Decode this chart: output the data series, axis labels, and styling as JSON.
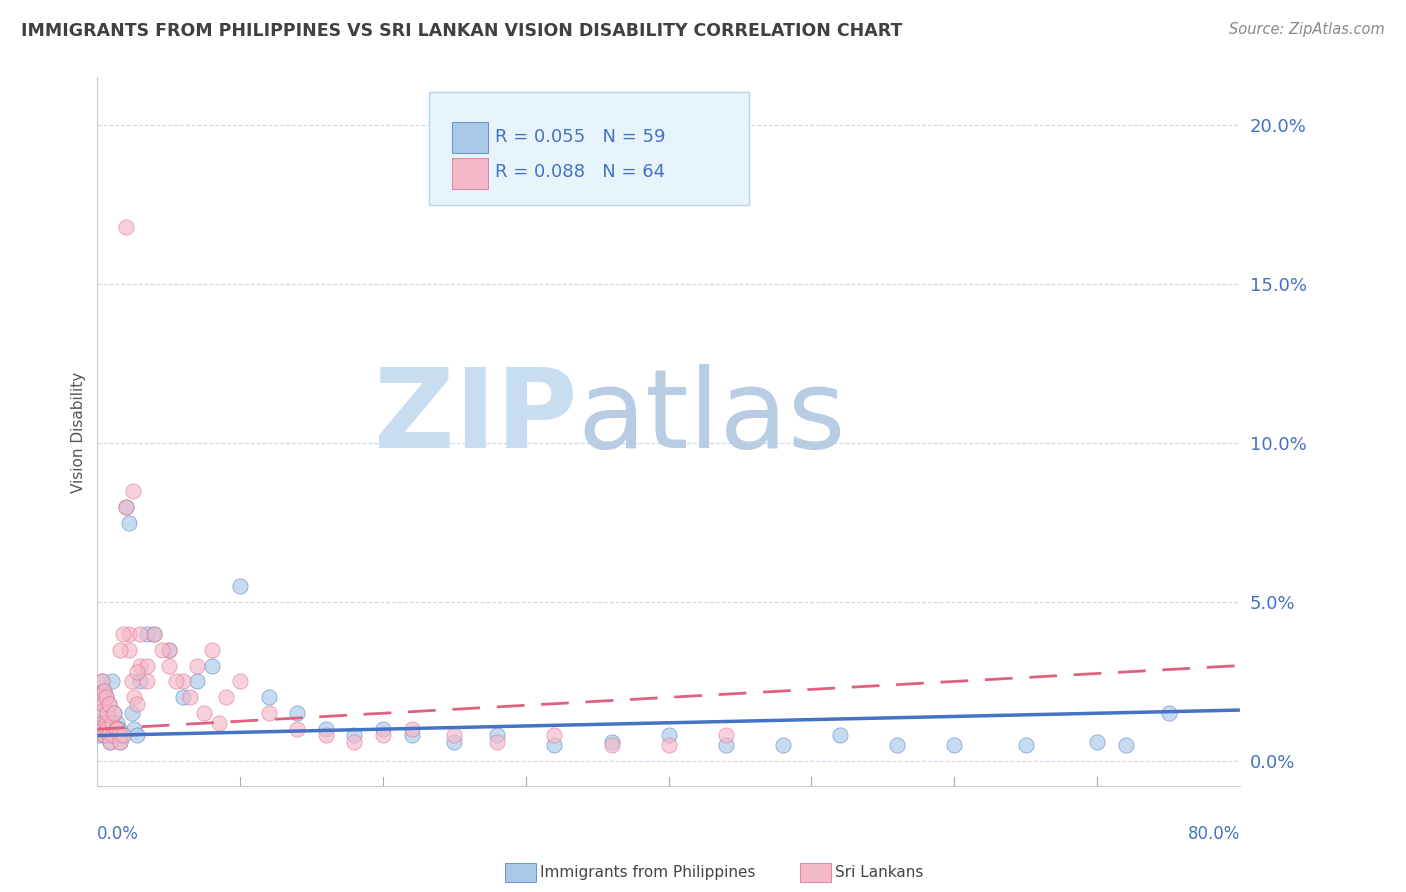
{
  "title": "IMMIGRANTS FROM PHILIPPINES VS SRI LANKAN VISION DISABILITY CORRELATION CHART",
  "source": "Source: ZipAtlas.com",
  "ylabel": "Vision Disability",
  "yticks": [
    0.0,
    0.05,
    0.1,
    0.15,
    0.2
  ],
  "ytick_labels": [
    "0.0%",
    "5.0%",
    "10.0%",
    "15.0%",
    "20.0%"
  ],
  "xlim": [
    0.0,
    0.8
  ],
  "ylim": [
    -0.008,
    0.215
  ],
  "philippines_R": 0.055,
  "philippines_N": 59,
  "srilanka_R": 0.088,
  "srilanka_N": 64,
  "color_blue": "#a8c8e8",
  "color_blue_line": "#4472c4",
  "color_pink": "#f4b8c8",
  "color_pink_line": "#e06080",
  "color_axis_label": "#4472c4",
  "color_title": "#404040",
  "watermark_zip": "#c8ddf0",
  "watermark_atlas": "#b8cce4",
  "legend_box_color": "#e8f4fb",
  "legend_box_edge": "#b8d4e8",
  "philippines_x": [
    0.001,
    0.002,
    0.002,
    0.003,
    0.003,
    0.004,
    0.004,
    0.005,
    0.005,
    0.006,
    0.006,
    0.007,
    0.007,
    0.008,
    0.008,
    0.009,
    0.009,
    0.01,
    0.01,
    0.011,
    0.012,
    0.013,
    0.014,
    0.015,
    0.016,
    0.018,
    0.02,
    0.022,
    0.024,
    0.026,
    0.028,
    0.03,
    0.035,
    0.04,
    0.05,
    0.06,
    0.07,
    0.08,
    0.1,
    0.12,
    0.14,
    0.16,
    0.18,
    0.2,
    0.22,
    0.25,
    0.28,
    0.32,
    0.36,
    0.4,
    0.44,
    0.48,
    0.52,
    0.56,
    0.6,
    0.65,
    0.7,
    0.72,
    0.75
  ],
  "philippines_y": [
    0.008,
    0.015,
    0.02,
    0.012,
    0.025,
    0.01,
    0.018,
    0.008,
    0.022,
    0.012,
    0.02,
    0.01,
    0.015,
    0.008,
    0.018,
    0.006,
    0.012,
    0.008,
    0.025,
    0.01,
    0.015,
    0.008,
    0.012,
    0.01,
    0.006,
    0.008,
    0.08,
    0.075,
    0.015,
    0.01,
    0.008,
    0.025,
    0.04,
    0.04,
    0.035,
    0.02,
    0.025,
    0.03,
    0.055,
    0.02,
    0.015,
    0.01,
    0.008,
    0.01,
    0.008,
    0.006,
    0.008,
    0.005,
    0.006,
    0.008,
    0.005,
    0.005,
    0.008,
    0.005,
    0.005,
    0.005,
    0.006,
    0.005,
    0.015
  ],
  "srilanka_x": [
    0.001,
    0.002,
    0.002,
    0.003,
    0.003,
    0.004,
    0.004,
    0.005,
    0.005,
    0.006,
    0.006,
    0.007,
    0.007,
    0.008,
    0.008,
    0.009,
    0.01,
    0.011,
    0.012,
    0.013,
    0.014,
    0.015,
    0.016,
    0.018,
    0.02,
    0.022,
    0.024,
    0.026,
    0.028,
    0.03,
    0.035,
    0.04,
    0.05,
    0.06,
    0.07,
    0.08,
    0.09,
    0.1,
    0.12,
    0.14,
    0.16,
    0.18,
    0.2,
    0.22,
    0.25,
    0.28,
    0.32,
    0.36,
    0.4,
    0.44,
    0.02,
    0.025,
    0.018,
    0.022,
    0.016,
    0.03,
    0.035,
    0.028,
    0.045,
    0.05,
    0.055,
    0.065,
    0.075,
    0.085
  ],
  "srilanka_y": [
    0.01,
    0.015,
    0.02,
    0.012,
    0.025,
    0.01,
    0.018,
    0.008,
    0.022,
    0.012,
    0.02,
    0.01,
    0.015,
    0.008,
    0.018,
    0.006,
    0.012,
    0.008,
    0.015,
    0.01,
    0.01,
    0.008,
    0.006,
    0.008,
    0.08,
    0.04,
    0.025,
    0.02,
    0.018,
    0.03,
    0.025,
    0.04,
    0.035,
    0.025,
    0.03,
    0.035,
    0.02,
    0.025,
    0.015,
    0.01,
    0.008,
    0.006,
    0.008,
    0.01,
    0.008,
    0.006,
    0.008,
    0.005,
    0.005,
    0.008,
    0.168,
    0.085,
    0.04,
    0.035,
    0.035,
    0.04,
    0.03,
    0.028,
    0.035,
    0.03,
    0.025,
    0.02,
    0.015,
    0.012
  ],
  "ph_trend_x": [
    0.0,
    0.8
  ],
  "ph_trend_y": [
    0.008,
    0.016
  ],
  "sl_trend_x": [
    0.0,
    0.8
  ],
  "sl_trend_y": [
    0.01,
    0.03
  ]
}
